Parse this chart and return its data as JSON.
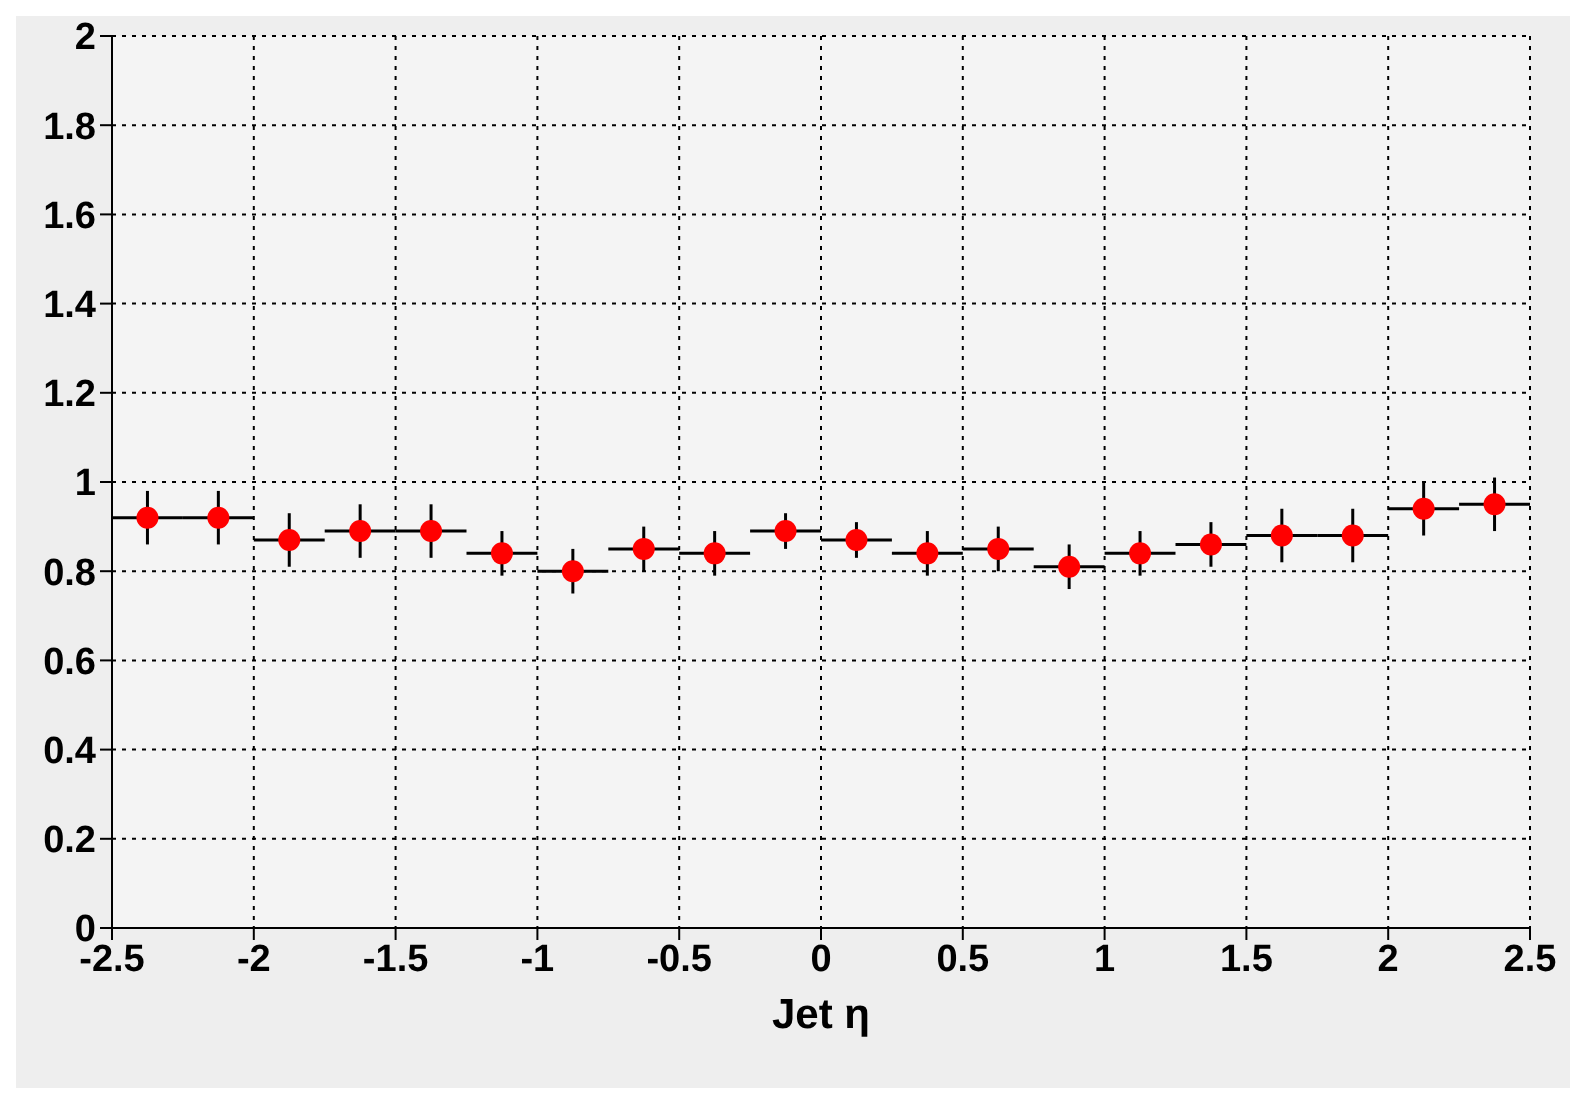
{
  "chart_data": {
    "type": "scatter",
    "xlabel": "Jet η",
    "x": [
      -2.375,
      -2.125,
      -1.875,
      -1.625,
      -1.375,
      -1.125,
      -0.875,
      -0.625,
      -0.375,
      -0.125,
      0.125,
      0.375,
      0.625,
      0.875,
      1.125,
      1.375,
      1.625,
      1.875,
      2.125,
      2.375
    ],
    "series": [
      {
        "color": "#ff0000",
        "values": [
          0.92,
          0.92,
          0.87,
          0.89,
          0.89,
          0.84,
          0.8,
          0.85,
          0.84,
          0.89,
          0.87,
          0.84,
          0.85,
          0.81,
          0.84,
          0.86,
          0.88,
          0.88,
          0.94,
          0.95
        ],
        "errors": [
          0.06,
          0.06,
          0.06,
          0.06,
          0.06,
          0.05,
          0.05,
          0.05,
          0.05,
          0.04,
          0.04,
          0.05,
          0.05,
          0.05,
          0.05,
          0.05,
          0.06,
          0.06,
          0.06,
          0.06
        ],
        "xerrors": [
          0.125,
          0.125,
          0.125,
          0.125,
          0.125,
          0.125,
          0.125,
          0.125,
          0.125,
          0.125,
          0.125,
          0.125,
          0.125,
          0.125,
          0.125,
          0.125,
          0.125,
          0.125,
          0.125,
          0.125
        ]
      }
    ],
    "xlim": [
      -2.5,
      2.5
    ],
    "xticks": [
      -2.5,
      -2,
      -1.5,
      -1,
      -0.5,
      0,
      0.5,
      1,
      1.5,
      2,
      2.5
    ],
    "ylim": [
      0,
      2
    ],
    "yticks": [
      0,
      0.2,
      0.4,
      0.6,
      0.8,
      1,
      1.2,
      1.4,
      1.6,
      1.8,
      2
    ],
    "grid": true,
    "marker": "circle"
  }
}
